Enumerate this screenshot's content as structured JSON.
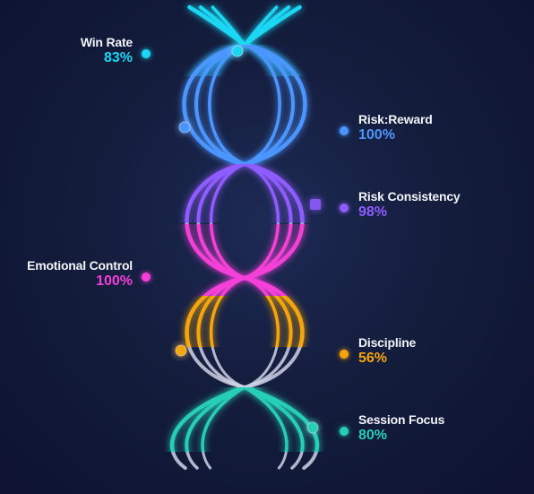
{
  "chart_data": {
    "type": "radial-helix",
    "metrics": [
      {
        "label": "Win Rate",
        "value": 83,
        "display": "83%",
        "color": "#1ad7f3",
        "side": "left"
      },
      {
        "label": "Risk:Reward",
        "value": 100,
        "display": "100%",
        "color": "#4b95ff",
        "side": "right"
      },
      {
        "label": "Risk Consistency",
        "value": 98,
        "display": "98%",
        "color": "#8f5cff",
        "side": "right"
      },
      {
        "label": "Emotional Control",
        "value": 100,
        "display": "100%",
        "color": "#f43fd8",
        "side": "left"
      },
      {
        "label": "Discipline",
        "value": 56,
        "display": "56%",
        "color": "#f5a60e",
        "side": "right"
      },
      {
        "label": "Session Focus",
        "value": 80,
        "display": "80%",
        "color": "#27cdb7",
        "side": "right"
      }
    ],
    "track_color": "#cfd3e6",
    "background": "#141d3d"
  }
}
